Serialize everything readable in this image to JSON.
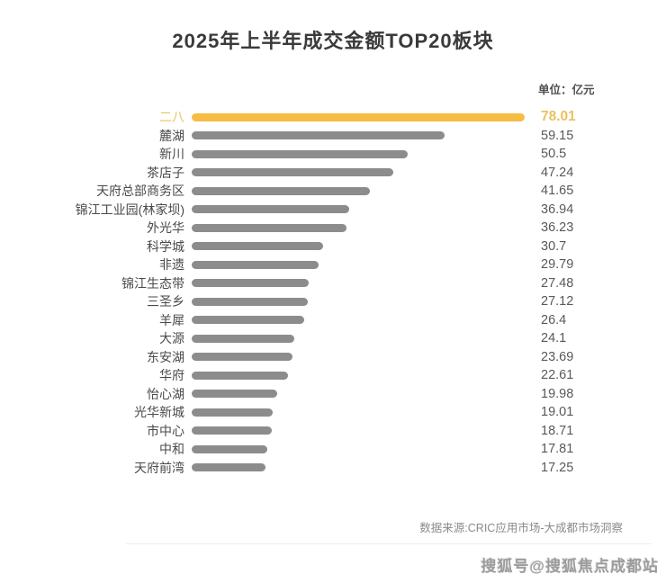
{
  "title": "2025年上半年成交金额TOP20板块",
  "unit_label": "单位：亿元",
  "chart_data": {
    "type": "bar",
    "orientation": "horizontal",
    "title": "2025年上半年成交金额TOP20板块",
    "unit": "亿元",
    "categories": [
      "二八",
      "麓湖",
      "新川",
      "茶店子",
      "天府总部商务区",
      "锦江工业园(林家坝)",
      "外光华",
      "科学城",
      "非遗",
      "锦江生态带",
      "三圣乡",
      "羊犀",
      "大源",
      "东安湖",
      "华府",
      "怡心湖",
      "光华新城",
      "市中心",
      "中和",
      "天府前湾"
    ],
    "values": [
      78.01,
      59.15,
      50.5,
      47.24,
      41.65,
      36.94,
      36.23,
      30.7,
      29.79,
      27.48,
      27.12,
      26.4,
      24.1,
      23.69,
      22.61,
      19.98,
      19.01,
      18.71,
      17.81,
      17.25
    ],
    "xlim": [
      0,
      78.01
    ],
    "grid": false,
    "legend": false,
    "value_labels": "right-column",
    "highlight_index": 0,
    "highlight_color": "#f5bd44",
    "bar_color": "#8c8c8c"
  },
  "footer": {
    "source": "数据来源:CRIC应用市场-大成都市场洞察"
  },
  "watermark": {
    "text": "搜狐号@搜狐焦点成都站"
  },
  "colors": {
    "highlight_bar": "#f5bd44",
    "highlight_text": "#eac25e",
    "bar": "#8c8c8c",
    "category_text": "#4a4a4a",
    "value_text": "#595959",
    "title_text": "#3a3a3a"
  }
}
